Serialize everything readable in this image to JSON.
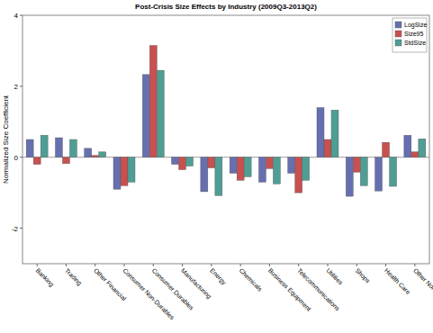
{
  "chart_data": {
    "type": "bar",
    "title": "Post-Crisis Size Effects by Industry (2009Q3-2013Q2)",
    "y_label": "Normalized Size Coefficient",
    "categories": [
      "Banking",
      "Trading",
      "Other Financial",
      "Consumer Non-Durables",
      "Consumer Durables",
      "Manufacturing",
      "Energy",
      "Chemicals",
      "Business Equipment",
      "Telecommunications",
      "Utilities",
      "Shops",
      "Health Care",
      "Other Non-Financial"
    ],
    "series": [
      {
        "name": "LogSize",
        "color": "#6670b0",
        "values": [
          0.5,
          0.55,
          0.25,
          -0.9,
          2.33,
          -0.2,
          -0.97,
          -0.45,
          -0.7,
          -0.45,
          1.4,
          -1.1,
          -0.95,
          0.62
        ]
      },
      {
        "name": "Size95",
        "color": "#c8504f",
        "values": [
          -0.2,
          -0.18,
          0.05,
          -0.8,
          3.15,
          -0.35,
          -0.3,
          -0.65,
          -0.32,
          -1.0,
          0.5,
          -0.42,
          0.42,
          0.15
        ]
      },
      {
        "name": "StdSize",
        "color": "#4f9e94",
        "values": [
          0.62,
          0.5,
          0.15,
          -0.7,
          2.45,
          -0.25,
          -1.08,
          -0.55,
          -0.75,
          -0.65,
          1.33,
          -0.8,
          -0.82,
          0.52
        ]
      }
    ],
    "ylim": [
      -3,
      4
    ],
    "yticks": [
      -2,
      0,
      2,
      4
    ],
    "grid": false,
    "legend": "top-right"
  }
}
